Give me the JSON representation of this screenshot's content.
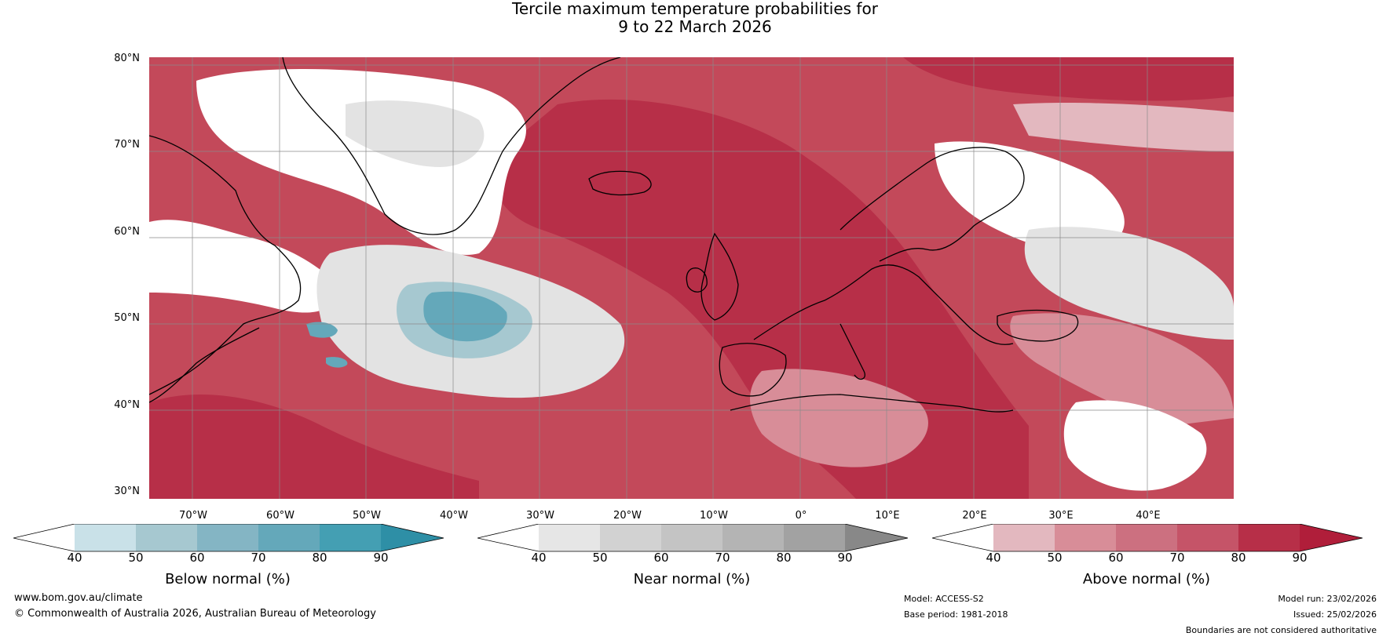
{
  "title": {
    "line1": "Tercile maximum temperature probabilities for",
    "line2": "9 to 22 March 2026"
  },
  "map": {
    "lat_labels": [
      "80°N",
      "70°N",
      "60°N",
      "50°N",
      "40°N",
      "30°N"
    ],
    "lon_labels": [
      "70°W",
      "60°W",
      "50°W",
      "40°W",
      "30°W",
      "20°W",
      "10°W",
      "0°",
      "10°E",
      "20°E",
      "30°E",
      "40°E"
    ],
    "extent": {
      "lon_min": -77,
      "lon_max": 48,
      "lat_min": 30,
      "lat_max": 81
    }
  },
  "colorbars": [
    {
      "title": "Below normal (%)",
      "ticks": [
        "40",
        "50",
        "60",
        "70",
        "80",
        "90"
      ],
      "colors": [
        "#ffffff",
        "#c9e1e8",
        "#a6c8d0",
        "#84b5c4",
        "#64a8ba",
        "#449fb3",
        "#2e8fa6"
      ]
    },
    {
      "title": "Near normal (%)",
      "ticks": [
        "40",
        "50",
        "60",
        "70",
        "80",
        "90"
      ],
      "colors": [
        "#ffffff",
        "#e6e6e6",
        "#d2d2d2",
        "#c4c4c4",
        "#b4b4b4",
        "#a2a2a2",
        "#888888"
      ]
    },
    {
      "title": "Above normal (%)",
      "ticks": [
        "40",
        "50",
        "60",
        "70",
        "80",
        "90"
      ],
      "colors": [
        "#ffffff",
        "#e3b8bf",
        "#d88d98",
        "#cc7080",
        "#c55468",
        "#b72f48",
        "#b01e3a"
      ]
    }
  ],
  "footer": {
    "website": "www.bom.gov.au/climate",
    "copyright": "© Commonwealth of Australia 2026, Australian Bureau of Meteorology",
    "model": "Model: ACCESS-S2",
    "base_period": "Base period: 1981-2018",
    "model_run": "Model run: 23/02/2026",
    "issued": "Issued: 25/02/2026",
    "boundaries": "Boundaries are not considered authoritative"
  }
}
